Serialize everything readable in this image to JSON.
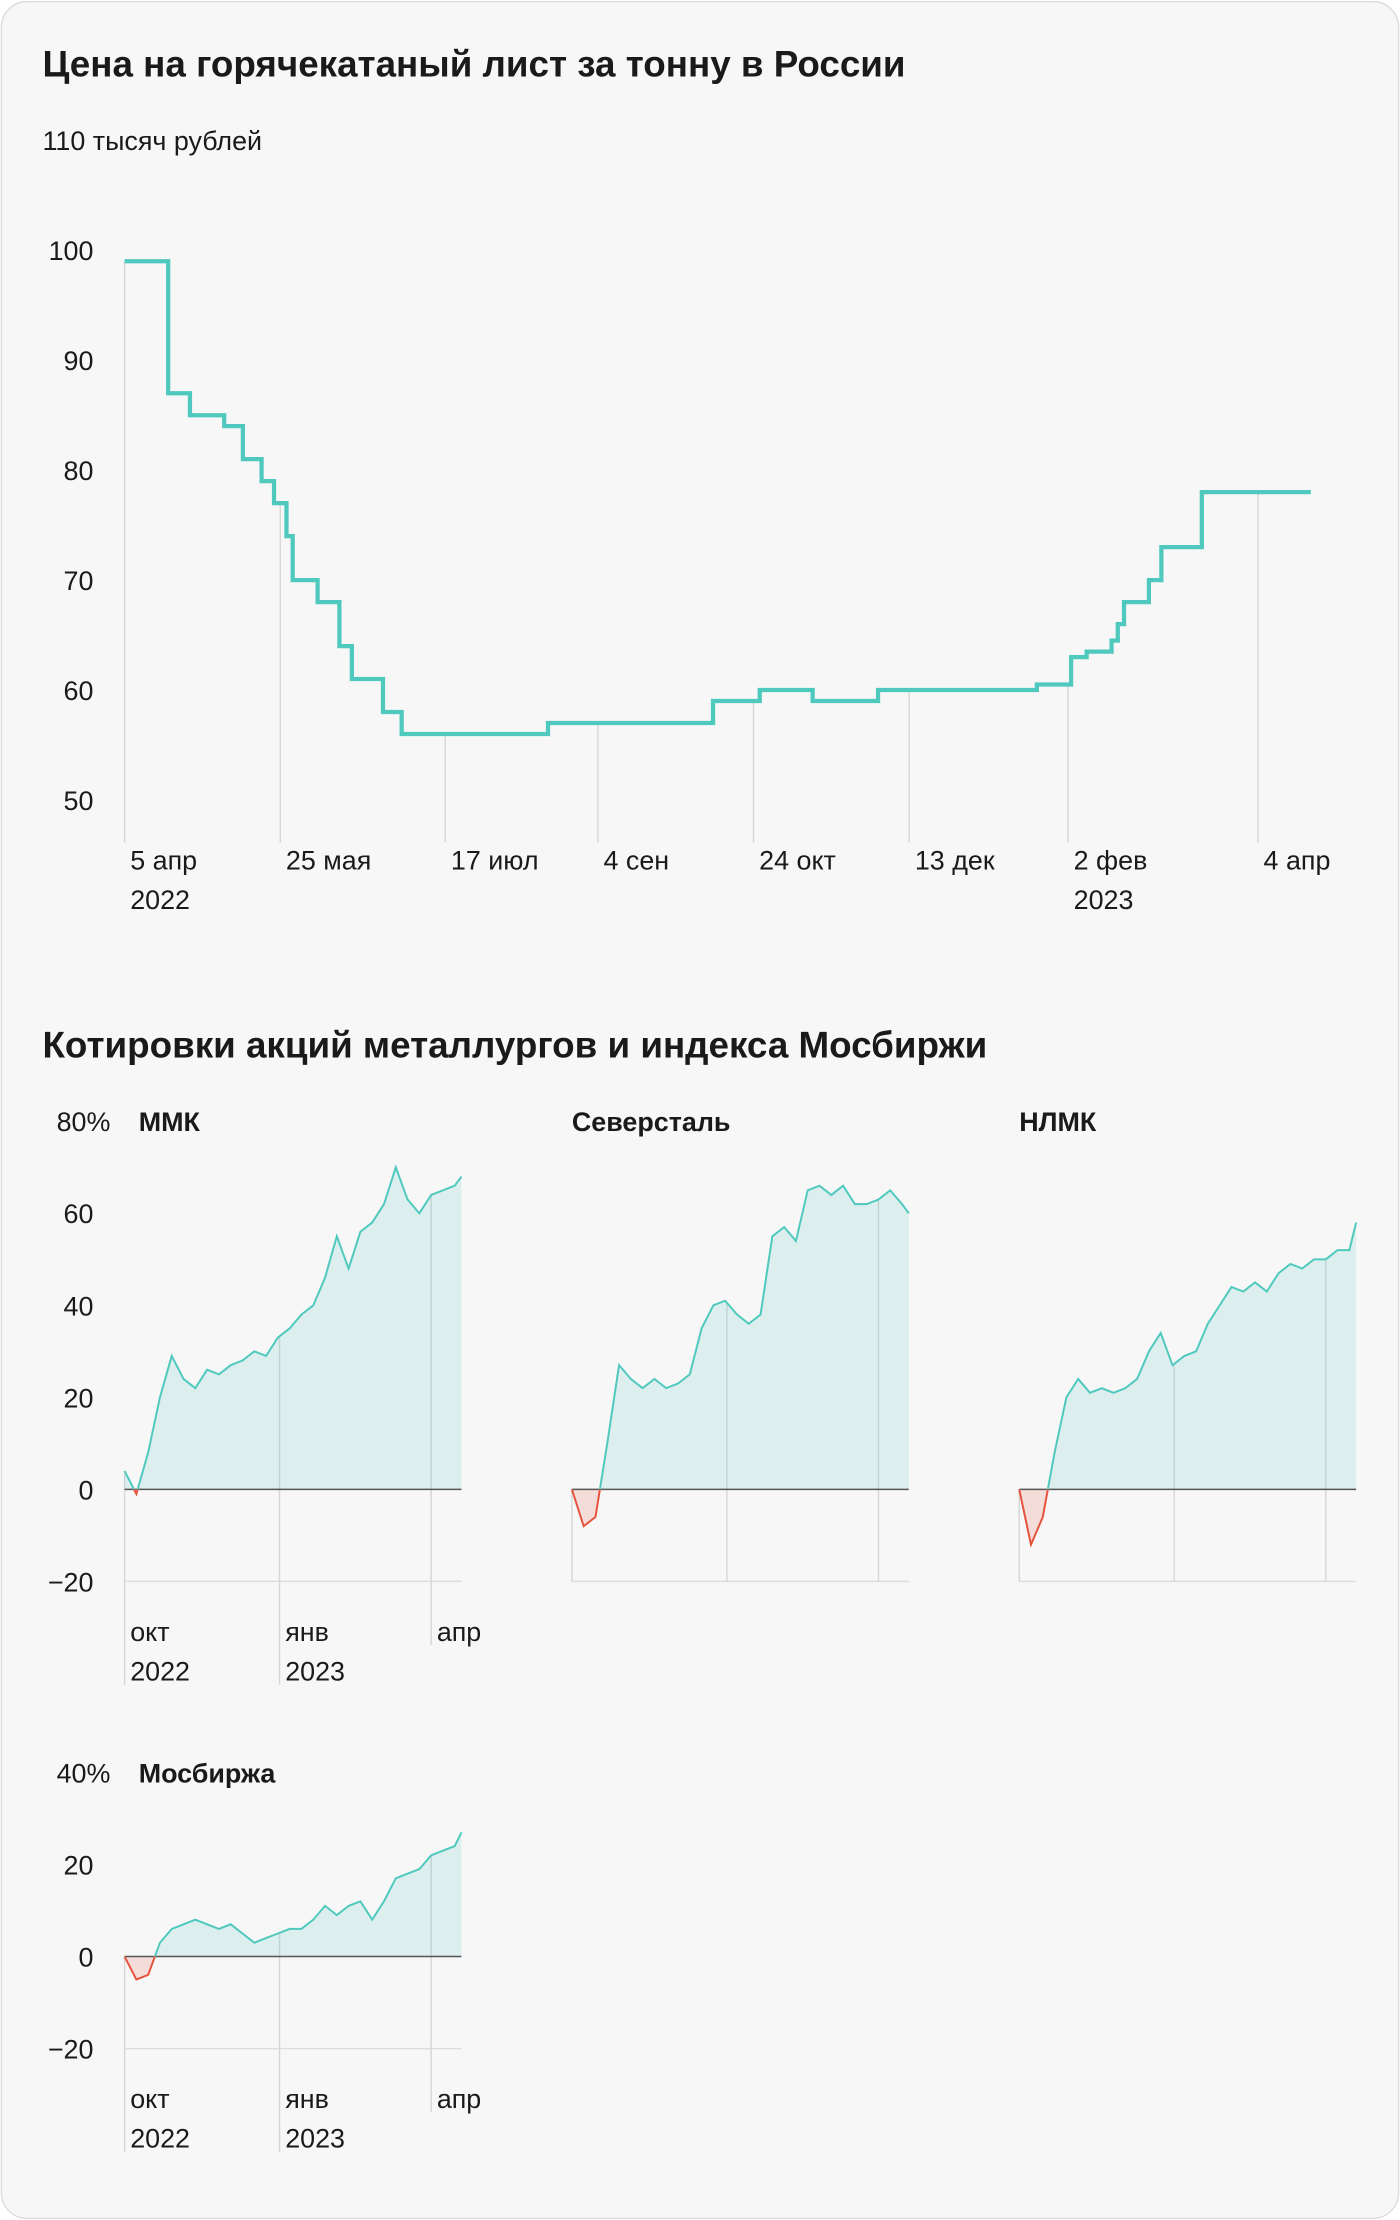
{
  "chart_data": [
    {
      "type": "line",
      "step": "post",
      "title": "Цена на горячекатаный лист за тонну в России",
      "color": "#4fc9be",
      "x": [
        "2022-04-05",
        "2022-04-19",
        "2022-04-26",
        "2022-05-07",
        "2022-05-13",
        "2022-05-19",
        "2022-05-23",
        "2022-05-27",
        "2022-05-29",
        "2022-06-06",
        "2022-06-13",
        "2022-06-17",
        "2022-06-27",
        "2022-07-03",
        "2022-08-19",
        "2022-10-11",
        "2022-10-26",
        "2022-11-12",
        "2022-12-03",
        "2023-01-23",
        "2023-02-03",
        "2023-02-08",
        "2023-02-16",
        "2023-02-18",
        "2023-02-20",
        "2023-02-28",
        "2023-03-04",
        "2023-03-17",
        "2023-04-21"
      ],
      "values": [
        99,
        87,
        85,
        84,
        81,
        79,
        77,
        74,
        70,
        68,
        64,
        61,
        58,
        56,
        57,
        59,
        60,
        59,
        60,
        60.5,
        63,
        63.5,
        64.5,
        66,
        68,
        70,
        73,
        78,
        78
      ],
      "xlim": [
        "2022-04-05",
        "2023-04-21"
      ],
      "xticks": [
        {
          "value": "2022-04-05",
          "label": "5 апр\n2022"
        },
        {
          "value": "2022-05-25",
          "label": "25 мая"
        },
        {
          "value": "2022-07-17",
          "label": "17 июл"
        },
        {
          "value": "2022-09-04",
          "label": "4 сен"
        },
        {
          "value": "2022-10-24",
          "label": "24 окт"
        },
        {
          "value": "2022-12-13",
          "label": "13 дек"
        },
        {
          "value": "2023-02-02",
          "label": "2 фев\n2023"
        },
        {
          "value": "2023-04-04",
          "label": "4 апр"
        }
      ],
      "ylim": [
        50,
        110
      ],
      "yticks": [
        {
          "value": 110,
          "label": "110 тысяч рублей"
        },
        100,
        90,
        80,
        70,
        60,
        50
      ]
    },
    {
      "type": "small_multiples",
      "title": "Котировки акций металлургов и индекса Мосбиржи",
      "color": "#4fc9be",
      "negative_color": "#e5533d",
      "x": [
        "2022-10-01",
        "2022-10-08",
        "2022-10-15",
        "2022-10-22",
        "2022-10-29",
        "2022-11-05",
        "2022-11-12",
        "2022-11-19",
        "2022-11-26",
        "2022-12-03",
        "2022-12-10",
        "2022-12-17",
        "2022-12-24",
        "2022-12-31",
        "2023-01-07",
        "2023-01-14",
        "2023-01-21",
        "2023-01-28",
        "2023-02-04",
        "2023-02-11",
        "2023-02-18",
        "2023-02-25",
        "2023-03-04",
        "2023-03-11",
        "2023-03-18",
        "2023-03-25",
        "2023-04-01",
        "2023-04-08",
        "2023-04-15",
        "2023-04-19"
      ],
      "xlim": [
        "2022-10-01",
        "2023-04-19"
      ],
      "xticks": [
        {
          "value": "2022-10-01",
          "label": "окт\n2022"
        },
        {
          "value": "2023-01-01",
          "label": "янв\n2023"
        },
        {
          "value": "2023-04-01",
          "label": "апр"
        }
      ],
      "ylim": [
        -20,
        80
      ],
      "yticks": [
        {
          "value": 80,
          "label": "80%"
        },
        60,
        40,
        20,
        0,
        {
          "value": -20,
          "label": "−20"
        }
      ],
      "panels": [
        {
          "title": "ММК",
          "values": [
            4,
            -1,
            8,
            20,
            29,
            24,
            22,
            26,
            25,
            27,
            28,
            30,
            29,
            33,
            35,
            38,
            40,
            46,
            55,
            48,
            56,
            58,
            62,
            70,
            63,
            60,
            64,
            65,
            66,
            68
          ]
        },
        {
          "title": "Северсталь",
          "values": [
            0,
            -8,
            -6,
            10,
            27,
            24,
            22,
            24,
            22,
            23,
            25,
            35,
            40,
            41,
            38,
            36,
            38,
            55,
            57,
            54,
            65,
            66,
            64,
            66,
            62,
            62,
            63,
            65,
            62,
            60
          ]
        },
        {
          "title": "НЛМК",
          "values": [
            0,
            -12,
            -6,
            8,
            20,
            24,
            21,
            22,
            21,
            22,
            24,
            30,
            34,
            27,
            29,
            30,
            36,
            40,
            44,
            43,
            45,
            43,
            47,
            49,
            48,
            50,
            50,
            52,
            52,
            58
          ]
        },
        {
          "title": "Мосбиржа",
          "ylim": [
            -20,
            40
          ],
          "yticks": [
            {
              "value": 40,
              "label": "40%"
            },
            20,
            0,
            {
              "value": -20,
              "label": "−20"
            }
          ],
          "values": [
            0,
            -5,
            -4,
            3,
            6,
            7,
            8,
            7,
            6,
            7,
            5,
            3,
            4,
            5,
            6,
            6,
            8,
            11,
            9,
            11,
            12,
            8,
            12,
            17,
            18,
            19,
            22,
            23,
            24,
            27
          ]
        }
      ]
    }
  ]
}
